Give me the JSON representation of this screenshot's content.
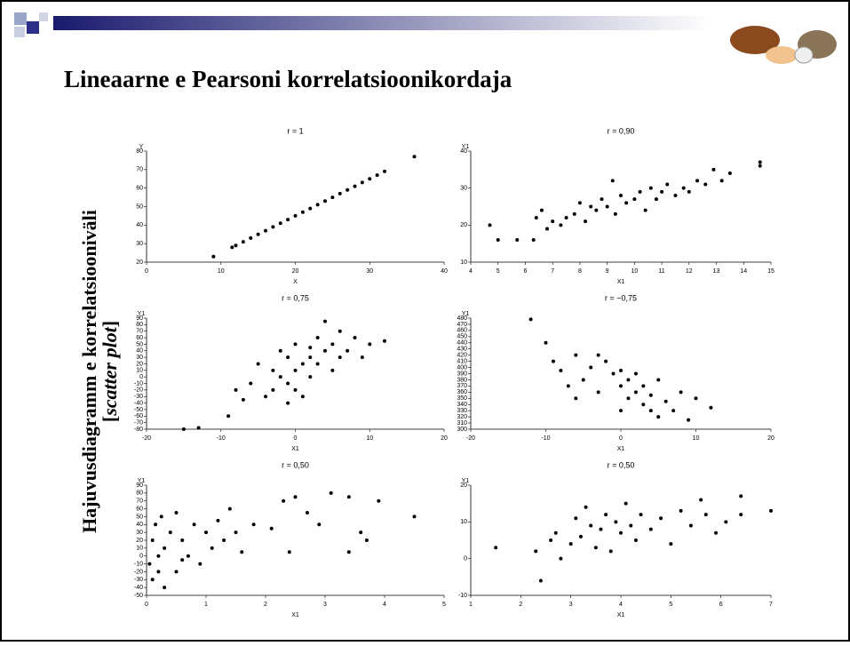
{
  "slide": {
    "title": "Lineaarne e Pearsoni korrelatsioonikordaja",
    "side_label": "Hajuvusdiagramm e korrelatsiooniväli",
    "side_label_2": [
      "[",
      "scatter plot",
      "]"
    ]
  },
  "chart_data": [
    {
      "type": "scatter",
      "title": "r = 1",
      "x_label": "X",
      "y_label": "Y",
      "color": "#000000",
      "xlim": [
        0,
        40
      ],
      "xticks": [
        0,
        10,
        20,
        30,
        40
      ],
      "ylim": [
        20,
        80
      ],
      "yticks": [
        20,
        30,
        40,
        50,
        60,
        70,
        80
      ],
      "x": [
        9,
        11.5,
        12,
        13,
        14,
        15,
        16,
        17,
        18,
        19,
        20,
        21,
        22,
        23,
        24,
        25,
        26,
        27,
        28,
        29,
        30,
        31,
        32,
        36
      ],
      "values": [
        23,
        28,
        29,
        31,
        33,
        35,
        37,
        39,
        41,
        43,
        45,
        47,
        49,
        51,
        53,
        55,
        57,
        59,
        61,
        63,
        65,
        67,
        69,
        77
      ]
    },
    {
      "type": "scatter",
      "title": "r = 0,90",
      "x_label": "X1",
      "y_label": "Y1",
      "color": "#000000",
      "xlim": [
        4,
        15
      ],
      "xticks": [
        4,
        5,
        6,
        7,
        8,
        9,
        10,
        11,
        12,
        13,
        14,
        15
      ],
      "ylim": [
        10,
        40
      ],
      "yticks": [
        10,
        20,
        30,
        40
      ],
      "x": [
        4.7,
        5,
        5.7,
        6.3,
        6.4,
        6.6,
        6.8,
        7,
        7.3,
        7.5,
        7.8,
        8,
        8.2,
        8.4,
        8.6,
        8.8,
        9,
        9.2,
        9.3,
        9.5,
        9.7,
        10,
        10.2,
        10.4,
        10.6,
        10.8,
        11,
        11.2,
        11.5,
        11.8,
        12,
        12.3,
        12.6,
        12.9,
        13.2,
        13.5,
        14.6,
        14.6
      ],
      "values": [
        20,
        16,
        16,
        16,
        22,
        24,
        19,
        21,
        20,
        22,
        23,
        26,
        21,
        25,
        24,
        27,
        25,
        32,
        23,
        28,
        26,
        27,
        29,
        24,
        30,
        27,
        29,
        31,
        28,
        30,
        29,
        32,
        31,
        35,
        32,
        34,
        36,
        37
      ]
    },
    {
      "type": "scatter",
      "title": "r = 0,75",
      "x_label": "X1",
      "y_label": "Y1",
      "color": "#000000",
      "xlim": [
        -20,
        20
      ],
      "xticks": [
        -20,
        -10,
        0,
        10,
        20
      ],
      "ylim": [
        -80,
        90
      ],
      "yticks": [
        -80,
        -70,
        -60,
        -50,
        -40,
        -30,
        -20,
        -10,
        0,
        10,
        20,
        30,
        40,
        50,
        60,
        70,
        80,
        90
      ],
      "x": [
        -15,
        -13,
        -9,
        -8,
        -7,
        -6,
        -5,
        -4,
        -3,
        -3,
        -2,
        -2,
        -1,
        -1,
        0,
        0,
        1,
        1,
        2,
        2,
        3,
        3,
        4,
        4,
        5,
        5,
        6,
        6,
        7,
        8,
        9,
        10,
        12,
        -1,
        0,
        2
      ],
      "values": [
        -80,
        -78,
        -60,
        -20,
        -35,
        -10,
        20,
        -30,
        10,
        -20,
        40,
        0,
        -10,
        30,
        10,
        50,
        20,
        -30,
        30,
        0,
        60,
        20,
        40,
        85,
        10,
        50,
        30,
        70,
        40,
        60,
        30,
        50,
        55,
        -40,
        -20,
        45
      ]
    },
    {
      "type": "scatter",
      "title": "r = −0,75",
      "x_label": "X1",
      "y_label": "Y1",
      "color": "#000000",
      "xlim": [
        -20,
        20
      ],
      "xticks": [
        -20,
        -10,
        0,
        10,
        20
      ],
      "ylim": [
        300,
        480
      ],
      "yticks": [
        300,
        310,
        320,
        330,
        340,
        350,
        360,
        370,
        380,
        390,
        400,
        410,
        420,
        430,
        440,
        450,
        460,
        470,
        480
      ],
      "x": [
        -12,
        -10,
        -9,
        -8,
        -7,
        -6,
        -5,
        -4,
        -3,
        -2,
        -1,
        0,
        0,
        1,
        1,
        2,
        2,
        3,
        3,
        4,
        4,
        5,
        5,
        6,
        7,
        8,
        9,
        10,
        12,
        -3,
        -6,
        0
      ],
      "values": [
        478,
        440,
        410,
        395,
        370,
        420,
        380,
        400,
        360,
        410,
        390,
        370,
        395,
        350,
        380,
        360,
        390,
        340,
        370,
        330,
        355,
        320,
        380,
        345,
        330,
        360,
        315,
        350,
        335,
        420,
        350,
        330
      ]
    },
    {
      "type": "scatter",
      "title": "r = 0,50",
      "x_label": "X1",
      "y_label": "Y1",
      "color": "#000000",
      "xlim": [
        0,
        5
      ],
      "xticks": [
        0,
        1,
        2,
        3,
        4,
        5
      ],
      "ylim": [
        -50,
        90
      ],
      "yticks": [
        -50,
        -40,
        -30,
        -20,
        -10,
        0,
        10,
        20,
        30,
        40,
        50,
        60,
        70,
        80,
        90
      ],
      "x": [
        0.05,
        0.1,
        0.1,
        0.15,
        0.2,
        0.25,
        0.3,
        0.3,
        0.4,
        0.5,
        0.5,
        0.6,
        0.7,
        0.8,
        0.9,
        1,
        1.1,
        1.2,
        1.3,
        1.4,
        1.5,
        1.6,
        1.8,
        2.1,
        2.3,
        2.4,
        2.5,
        2.7,
        2.9,
        3.1,
        3.4,
        3.4,
        3.6,
        3.7,
        3.9,
        4.5,
        0.2,
        0.6
      ],
      "values": [
        -10,
        20,
        -30,
        40,
        0,
        50,
        -40,
        10,
        30,
        -20,
        55,
        20,
        0,
        40,
        -10,
        30,
        10,
        45,
        20,
        60,
        30,
        5,
        40,
        35,
        70,
        5,
        75,
        55,
        40,
        80,
        75,
        5,
        30,
        20,
        70,
        50,
        -20,
        -5
      ]
    },
    {
      "type": "scatter",
      "title": "r = 0,50",
      "x_label": "X1",
      "y_label": "Y1",
      "color": "#000000",
      "xlim": [
        1,
        7
      ],
      "xticks": [
        1,
        2,
        3,
        4,
        5,
        6,
        7
      ],
      "ylim": [
        -10,
        20
      ],
      "yticks": [
        -10,
        0,
        10,
        20
      ],
      "x": [
        1.5,
        2.3,
        2.4,
        2.6,
        2.7,
        2.8,
        3,
        3.1,
        3.2,
        3.3,
        3.4,
        3.5,
        3.6,
        3.7,
        3.8,
        3.9,
        4,
        4.1,
        4.2,
        4.3,
        4.4,
        4.6,
        4.8,
        5,
        5.2,
        5.4,
        5.6,
        5.7,
        5.9,
        6.1,
        6.4,
        6.4,
        7
      ],
      "values": [
        3,
        2,
        -6,
        5,
        7,
        0,
        4,
        11,
        6,
        14,
        9,
        3,
        8,
        12,
        2,
        10,
        7,
        15,
        9,
        5,
        12,
        8,
        11,
        4,
        13,
        9,
        16,
        12,
        7,
        10,
        17,
        12,
        13
      ]
    }
  ]
}
